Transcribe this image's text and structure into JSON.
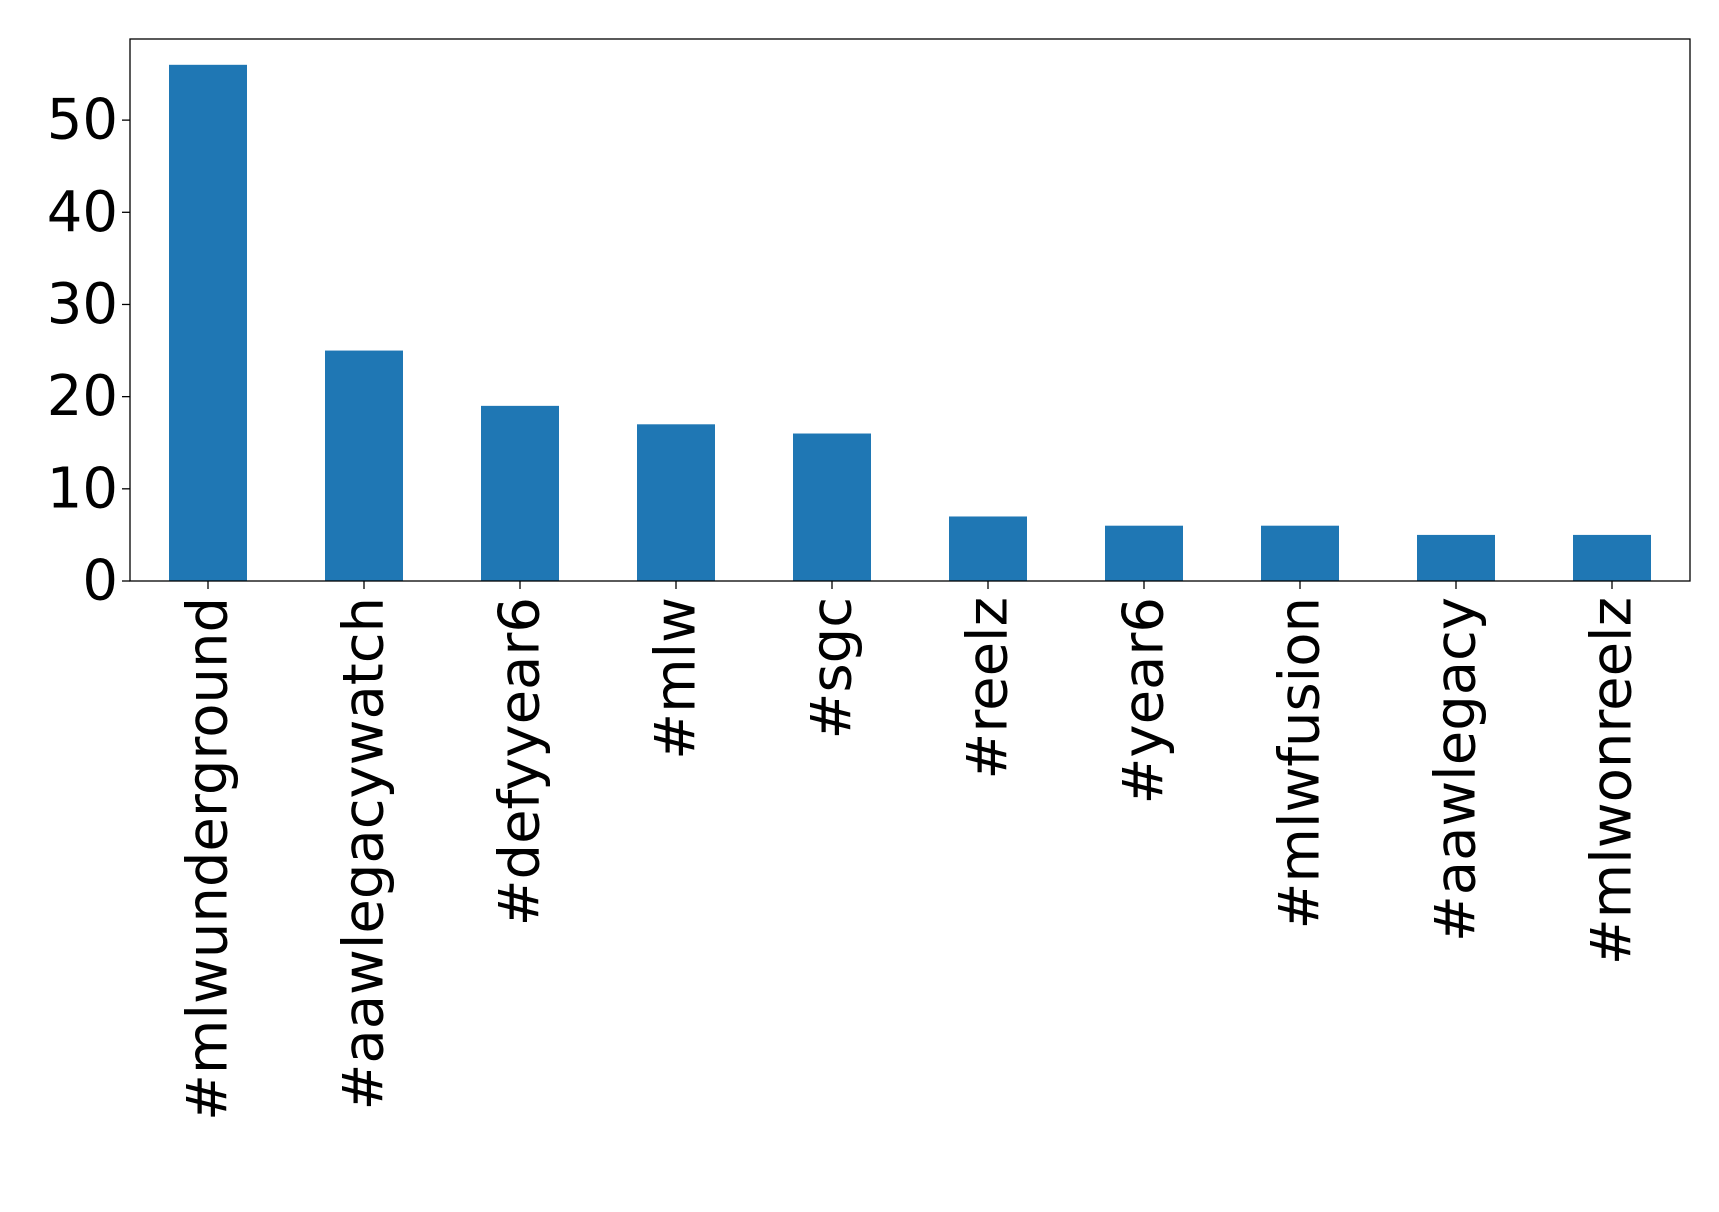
{
  "chart_data": {
    "type": "bar",
    "title": "",
    "xlabel": "",
    "ylabel": "",
    "categories": [
      "#mlwunderground",
      "#aawlegacywatch",
      "#defyyear6",
      "#mlw",
      "#sgc",
      "#reelz",
      "#year6",
      "#mlwfusion",
      "#aawlegacy",
      "#mlwonreelz"
    ],
    "values": [
      56,
      25,
      19,
      17,
      16,
      7,
      6,
      6,
      5,
      5
    ],
    "ylim": [
      0,
      58.8
    ],
    "yticks": [
      0,
      10,
      20,
      30,
      40,
      50
    ],
    "grid": false,
    "legend": "none",
    "bar_color": "#1f77b4"
  }
}
